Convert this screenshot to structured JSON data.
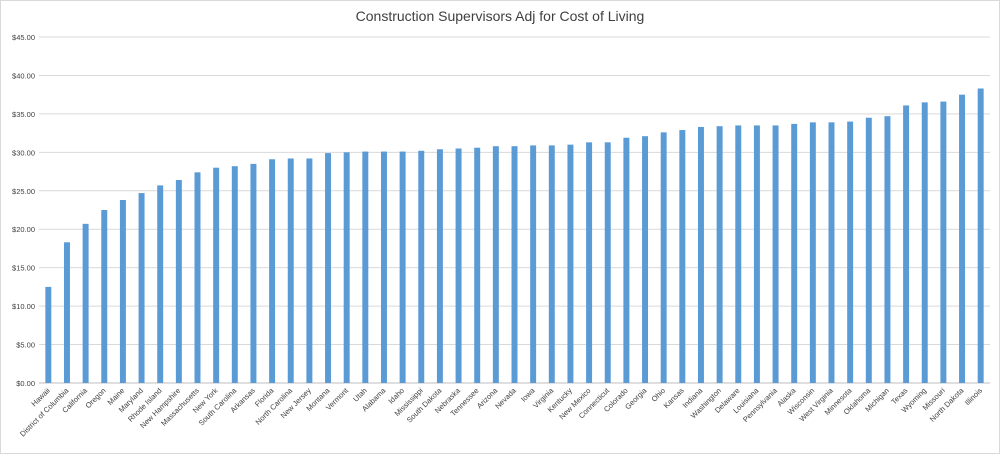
{
  "chart_data": {
    "type": "bar",
    "title": "Construction Supervisors Adj for Cost of Living",
    "xlabel": "",
    "ylabel": "",
    "ylim": [
      0,
      45
    ],
    "y_ticks": [
      "$0.00",
      "$5.00",
      "$10.00",
      "$15.00",
      "$20.00",
      "$25.00",
      "$30.00",
      "$35.00",
      "$40.00",
      "$45.00"
    ],
    "grid": true,
    "legend": "none",
    "bar_color": "#5b9bd5",
    "categories": [
      "Hawaii",
      "District of Columbia",
      "California",
      "Oregon",
      "Maine",
      "Maryland",
      "Rhode Island",
      "New Hampshire",
      "Massachusetts",
      "New York",
      "South Carolina",
      "Arkansas",
      "Florida",
      "North Carolina",
      "New Jersey",
      "Montana",
      "Vermont",
      "Utah",
      "Alabama",
      "Idaho",
      "Mississippi",
      "South Dakota",
      "Nebraska",
      "Tennessee",
      "Arizona",
      "Nevada",
      "Iowa",
      "Virginia",
      "Kentucky",
      "New Mexico",
      "Connecticut",
      "Colorado",
      "Georgia",
      "Ohio",
      "Kansas",
      "Indiana",
      "Washington",
      "Delaware",
      "Louisiana",
      "Pennsylvania",
      "Alaska",
      "Wisconsin",
      "West Virginia",
      "Minnesota",
      "Oklahoma",
      "Michigan",
      "Texas",
      "Wyoming",
      "Missouri",
      "North Dakota",
      "Illinois"
    ],
    "values": [
      12.5,
      18.3,
      20.7,
      22.5,
      23.8,
      24.7,
      25.7,
      26.4,
      27.4,
      28.0,
      28.2,
      28.5,
      29.1,
      29.2,
      29.2,
      29.9,
      30.0,
      30.1,
      30.1,
      30.1,
      30.2,
      30.4,
      30.5,
      30.6,
      30.8,
      30.8,
      30.9,
      30.9,
      31.0,
      31.3,
      31.3,
      31.9,
      32.1,
      32.6,
      32.9,
      33.3,
      33.4,
      33.5,
      33.5,
      33.5,
      33.7,
      33.9,
      33.9,
      34.0,
      34.5,
      34.7,
      36.1,
      36.5,
      36.6,
      37.5,
      38.3
    ]
  }
}
